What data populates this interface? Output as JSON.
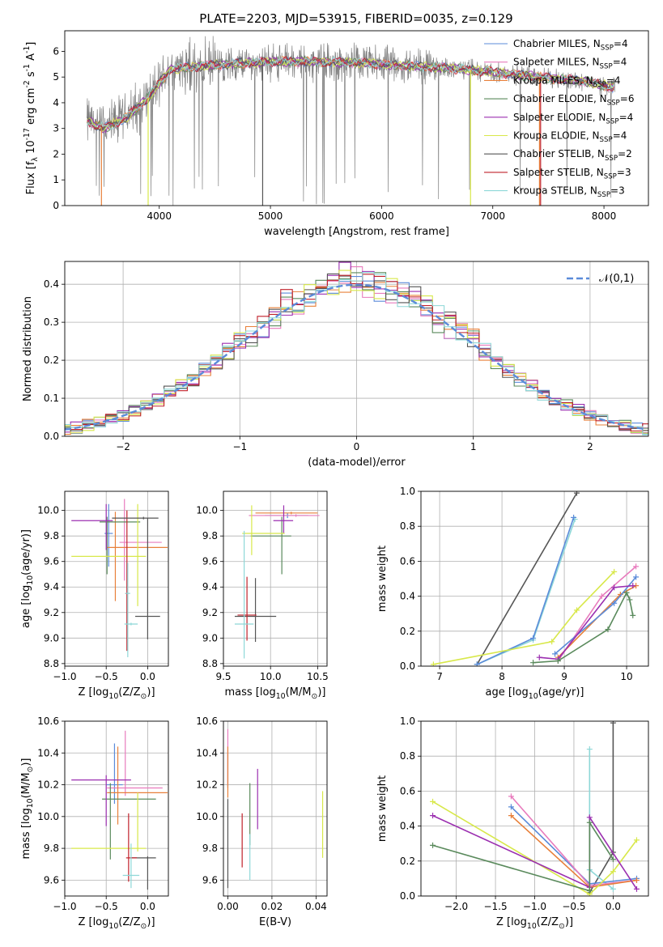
{
  "figure": {
    "title": "PLATE=2203, MJD=53915, FIBERID=0035, z=0.129"
  },
  "colors": {
    "Chabrier MILES": "#5b8bd9",
    "Salpeter MILES": "#e87bbd",
    "Kroupa MILES": "#e8803a",
    "Chabrier ELODIE": "#5a8a5c",
    "Salpeter ELODIE": "#9b2fb0",
    "Kroupa ELODIE": "#d8e84a",
    "Chabrier STELIB": "#555555",
    "Salpeter STELIB": "#c0202a",
    "Kroupa STELIB": "#8ed8d8",
    "normal_curve": "#5b8bd9"
  },
  "chart_data": [
    {
      "id": "spectrum",
      "type": "line",
      "xlabel": "wavelength [Angstrom, rest frame]",
      "ylabel": "Flux [f$_\\lambda$ 10$^{-17}$ erg cm$^{-2}$ s$^{-1}$ A$^{-1}$]",
      "xlim": [
        3150,
        8400
      ],
      "ylim": [
        0,
        6.8
      ],
      "xticks": [
        4000,
        5000,
        6000,
        7000,
        8000
      ],
      "yticks": [
        0,
        1,
        2,
        3,
        4,
        5,
        6
      ],
      "grid": false,
      "legend_position": "upper right",
      "series": [
        {
          "name": "Chabrier MILES, N$_{SSP}$=4"
        },
        {
          "name": "Salpeter MILES, N$_{SSP}$=4"
        },
        {
          "name": "Kroupa MILES, N$_{SSP}$=4"
        },
        {
          "name": "Chabrier ELODIE, N$_{SSP}$=6"
        },
        {
          "name": "Salpeter ELODIE, N$_{SSP}$=4"
        },
        {
          "name": "Kroupa ELODIE, N$_{SSP}$=4"
        },
        {
          "name": "Chabrier STELIB, N$_{SSP}$=2"
        },
        {
          "name": "Salpeter STELIB, N$_{SSP}$=3"
        },
        {
          "name": "Kroupa STELIB, N$_{SSP}$=3"
        }
      ],
      "continuum": {
        "x": [
          3350,
          3500,
          3700,
          3900,
          4100,
          4300,
          4600,
          5000,
          5400,
          5800,
          6200,
          6600,
          7000,
          7400,
          7800,
          8100
        ],
        "y": [
          3.3,
          3.0,
          3.4,
          4.2,
          5.3,
          5.4,
          5.5,
          5.6,
          5.6,
          5.55,
          5.45,
          5.35,
          5.2,
          5.0,
          4.85,
          4.6
        ]
      }
    },
    {
      "id": "residuals",
      "type": "line",
      "xlabel": "(data-model)/error",
      "ylabel": "Normed distribution",
      "xlim": [
        -2.5,
        2.5
      ],
      "ylim": [
        0,
        0.46
      ],
      "xticks": [
        -2,
        -1,
        0,
        1,
        2
      ],
      "yticks": [
        0.0,
        0.1,
        0.2,
        0.3,
        0.4
      ],
      "grid": true,
      "legend_position": "upper right",
      "curve_label": "$\\mathcal{N}(0,1)$"
    },
    {
      "id": "age_vs_Z",
      "type": "scatter",
      "xlabel": "Z [log$_{10}$(Z/Z$_\\odot$)]",
      "ylabel": "age  [log$_{10}$(age/yr)]",
      "xlim": [
        -1.0,
        0.25
      ],
      "ylim": [
        8.78,
        10.15
      ],
      "xticks": [
        -1.0,
        -0.5,
        0.0
      ],
      "yticks": [
        8.8,
        9.0,
        9.2,
        9.4,
        9.6,
        9.8,
        10.0
      ],
      "grid": true,
      "errorbars": [
        {
          "model": "Chabrier MILES",
          "x": -0.47,
          "y": 9.82,
          "xerr": [
            0.05,
            0.05
          ],
          "yerr": [
            0.26,
            0.23
          ]
        },
        {
          "model": "Salpeter MILES",
          "x": -0.28,
          "y": 9.75,
          "xerr": [
            0.06,
            0.45
          ],
          "yerr": [
            0.3,
            0.34
          ]
        },
        {
          "model": "Kroupa MILES",
          "x": -0.39,
          "y": 9.71,
          "xerr": [
            0.1,
            0.63
          ],
          "yerr": [
            0.42,
            0.28
          ]
        },
        {
          "model": "Chabrier ELODIE",
          "x": -0.49,
          "y": 9.91,
          "xerr": [
            0.09,
            0.4
          ],
          "yerr": [
            0.41,
            0.04
          ]
        },
        {
          "model": "Salpeter ELODIE",
          "x": -0.5,
          "y": 9.92,
          "xerr": [
            0.42,
            0.08
          ],
          "yerr": [
            0.23,
            0.13
          ]
        },
        {
          "model": "Kroupa ELODIE",
          "x": -0.12,
          "y": 9.64,
          "xerr": [
            0.8,
            0.1
          ],
          "yerr": [
            0.39,
            0.41
          ]
        },
        {
          "model": "Chabrier STELIB",
          "x": 0.0,
          "y": 9.17,
          "xerr": [
            0.15,
            0.15
          ],
          "yerr": [
            0.18,
            0.77
          ]
        },
        {
          "model": "Salpeter STELIB",
          "x": -0.25,
          "y": 9.35,
          "xerr": [
            0.02,
            0.02
          ],
          "yerr": [
            0.45,
            0.65
          ]
        },
        {
          "model": "Kroupa STELIB",
          "x": -0.24,
          "y": 9.35,
          "xerr": [
            0.03,
            0.03
          ],
          "yerr": [
            0.5,
            0.24
          ]
        },
        {
          "model": "Kroupa STELIB",
          "x": -0.2,
          "y": 9.11,
          "xerr": [
            0.08,
            0.08
          ],
          "yerr": [
            0.01,
            0.01
          ]
        },
        {
          "model": "Chabrier STELIB",
          "x": -0.05,
          "y": 9.94,
          "xerr": [
            0.38,
            0.18
          ],
          "yerr": [
            0.01,
            0.01
          ]
        }
      ]
    },
    {
      "id": "age_vs_mass",
      "type": "scatter",
      "xlabel": "mass [log$_{10}$(M/M$_\\odot$)]",
      "ylabel": "",
      "xlim": [
        9.5,
        10.6
      ],
      "ylim": [
        8.78,
        10.15
      ],
      "xticks": [
        9.5,
        10.0,
        10.5
      ],
      "yticks": [
        8.8,
        9.0,
        9.2,
        9.4,
        9.6,
        9.8,
        10.0
      ],
      "grid": true,
      "errorbars": [
        {
          "model": "Chabrier MILES",
          "x": 10.18,
          "y": 9.96,
          "xerr": [
            0.24,
            0.22
          ],
          "yerr": [
            0.02,
            0.02
          ]
        },
        {
          "model": "Salpeter MILES",
          "x": 10.27,
          "y": 9.96,
          "xerr": [
            0.5,
            0.25
          ],
          "yerr": [
            0.01,
            0.01
          ]
        },
        {
          "model": "Kroupa MILES",
          "x": 10.22,
          "y": 9.98,
          "xerr": [
            0.38,
            0.28
          ],
          "yerr": [
            0.01,
            0.01
          ]
        },
        {
          "model": "Chabrier ELODIE",
          "x": 10.12,
          "y": 9.8,
          "xerr": [
            0.33,
            0.1
          ],
          "yerr": [
            0.3,
            0.15
          ]
        },
        {
          "model": "Salpeter ELODIE",
          "x": 10.14,
          "y": 9.92,
          "xerr": [
            0.11,
            0.1
          ],
          "yerr": [
            0.1,
            0.12
          ]
        },
        {
          "model": "Kroupa ELODIE",
          "x": 9.8,
          "y": 9.82,
          "xerr": [
            0.1,
            0.35
          ],
          "yerr": [
            0.17,
            0.22
          ]
        },
        {
          "model": "Chabrier STELIB",
          "x": 9.84,
          "y": 9.17,
          "xerr": [
            0.22,
            0.22
          ],
          "yerr": [
            0.2,
            0.3
          ]
        },
        {
          "model": "Salpeter STELIB",
          "x": 9.75,
          "y": 9.18,
          "xerr": [
            0.1,
            0.1
          ],
          "yerr": [
            0.2,
            0.3
          ]
        },
        {
          "model": "Kroupa STELIB",
          "x": 9.72,
          "y": 9.11,
          "xerr": [
            0.1,
            0.1
          ],
          "yerr": [
            0.27,
            0.73
          ]
        }
      ]
    },
    {
      "id": "weight_vs_age",
      "type": "line",
      "xlabel": "age  [log$_{10}$(age/yr)]",
      "ylabel": "mass weight",
      "xlim": [
        6.7,
        10.35
      ],
      "ylim": [
        0,
        1.0
      ],
      "xticks": [
        7,
        8,
        9,
        10
      ],
      "yticks": [
        0.0,
        0.2,
        0.4,
        0.6,
        0.8,
        1.0
      ],
      "grid": true,
      "series": [
        {
          "model": "Chabrier STELIB",
          "x": [
            7.6,
            9.2
          ],
          "y": [
            0.01,
            0.99
          ]
        },
        {
          "model": "Kroupa STELIB",
          "x": [
            7.6,
            8.5,
            9.17
          ],
          "y": [
            0.01,
            0.15,
            0.84
          ]
        },
        {
          "model": "Chabrier MILES",
          "x": [
            7.6,
            8.5,
            9.15
          ],
          "y": [
            0.01,
            0.16,
            0.85
          ]
        },
        {
          "model": "Kroupa ELODIE",
          "x": [
            6.9,
            8.8,
            9.2,
            9.8
          ],
          "y": [
            0.01,
            0.14,
            0.32,
            0.54
          ]
        },
        {
          "model": "Salpeter MILES",
          "x": [
            8.9,
            9.6,
            10.15
          ],
          "y": [
            0.03,
            0.4,
            0.57
          ]
        },
        {
          "model": "Kroupa MILES",
          "x": [
            8.9,
            9.9,
            10.15
          ],
          "y": [
            0.05,
            0.41,
            0.46
          ]
        },
        {
          "model": "Chabrier MILES",
          "x": [
            8.85,
            9.8,
            10.15
          ],
          "y": [
            0.07,
            0.36,
            0.51
          ]
        },
        {
          "model": "Salpeter ELODIE",
          "x": [
            8.6,
            8.9,
            9.8,
            10.1
          ],
          "y": [
            0.05,
            0.04,
            0.45,
            0.46
          ]
        },
        {
          "model": "Chabrier ELODIE",
          "x": [
            8.5,
            8.9,
            9.7,
            10.0,
            10.05,
            10.1
          ],
          "y": [
            0.02,
            0.03,
            0.21,
            0.42,
            0.38,
            0.29
          ]
        }
      ]
    },
    {
      "id": "mass_vs_Z",
      "type": "scatter",
      "xlabel": "Z [log$_{10}$(Z/Z$_\\odot$)]",
      "ylabel": "mass [log$_{10}$(M/M$_\\odot$)]",
      "xlim": [
        -1.0,
        0.25
      ],
      "ylim": [
        9.5,
        10.6
      ],
      "xticks": [
        -1.0,
        -0.5,
        0.0
      ],
      "yticks": [
        9.6,
        9.8,
        10.0,
        10.2,
        10.4,
        10.6
      ],
      "grid": true,
      "errorbars": [
        {
          "model": "Chabrier MILES",
          "x": -0.4,
          "y": 10.2,
          "xerr": [
            0.1,
            0.1
          ],
          "yerr": [
            0.12,
            0.26
          ]
        },
        {
          "model": "Salpeter MILES",
          "x": -0.27,
          "y": 10.18,
          "xerr": [
            0.22,
            0.45
          ],
          "yerr": [
            0.05,
            0.36
          ]
        },
        {
          "model": "Kroupa MILES",
          "x": -0.36,
          "y": 10.15,
          "xerr": [
            0.13,
            0.6
          ],
          "yerr": [
            0.2,
            0.29
          ]
        },
        {
          "model": "Chabrier ELODIE",
          "x": -0.45,
          "y": 10.11,
          "xerr": [
            0.1,
            0.55
          ],
          "yerr": [
            0.38,
            0.1
          ]
        },
        {
          "model": "Salpeter ELODIE",
          "x": -0.5,
          "y": 10.23,
          "xerr": [
            0.42,
            0.3
          ],
          "yerr": [
            0.29,
            0.03
          ]
        },
        {
          "model": "Kroupa ELODIE",
          "x": -0.12,
          "y": 9.8,
          "xerr": [
            0.8,
            0.1
          ],
          "yerr": [
            0.02,
            0.35
          ]
        },
        {
          "model": "Chabrier STELIB",
          "x": 0.0,
          "y": 9.74,
          "xerr": [
            0.2,
            0.1
          ],
          "yerr": [
            0.2,
            0.01
          ]
        },
        {
          "model": "Salpeter STELIB",
          "x": -0.23,
          "y": 9.74,
          "xerr": [
            0.03,
            0.1
          ],
          "yerr": [
            0.15,
            0.28
          ]
        },
        {
          "model": "Kroupa STELIB",
          "x": -0.2,
          "y": 9.63,
          "xerr": [
            0.1,
            0.1
          ],
          "yerr": [
            0.08,
            0.2
          ]
        }
      ]
    },
    {
      "id": "mass_vs_ebv",
      "type": "scatter",
      "xlabel": "E(B-V)",
      "ylabel": "",
      "xlim": [
        -0.002,
        0.045
      ],
      "ylim": [
        9.5,
        10.6
      ],
      "xticks": [
        0.0,
        0.02,
        0.04
      ],
      "yticks": [
        9.6,
        9.8,
        10.0,
        10.2,
        10.4,
        10.6
      ],
      "grid": true,
      "errorbars": [
        {
          "model": "Chabrier MILES",
          "x": 0.0,
          "y": 10.3,
          "xerr": [
            0,
            0
          ],
          "yerr": [
            0.12,
            0.1
          ]
        },
        {
          "model": "Salpeter MILES",
          "x": 0.0,
          "y": 10.3,
          "xerr": [
            0,
            0
          ],
          "yerr": [
            0.1,
            0.25
          ]
        },
        {
          "model": "Kroupa MILES",
          "x": 0.0,
          "y": 10.3,
          "xerr": [
            0,
            0
          ],
          "yerr": [
            0.18,
            0.14
          ]
        },
        {
          "model": "Chabrier ELODIE",
          "x": 0.01,
          "y": 10.02,
          "xerr": [
            0,
            0
          ],
          "yerr": [
            0.2,
            0.19
          ]
        },
        {
          "model": "Salpeter ELODIE",
          "x": 0.0135,
          "y": 10.12,
          "xerr": [
            0,
            0
          ],
          "yerr": [
            0.2,
            0.18
          ]
        },
        {
          "model": "Kroupa ELODIE",
          "x": 0.043,
          "y": 9.95,
          "xerr": [
            0,
            0
          ],
          "yerr": [
            0.21,
            0.21
          ]
        },
        {
          "model": "Chabrier STELIB",
          "x": 0.0,
          "y": 9.85,
          "xerr": [
            0,
            0
          ],
          "yerr": [
            0.3,
            0.26
          ]
        },
        {
          "model": "Salpeter STELIB",
          "x": 0.0065,
          "y": 9.85,
          "xerr": [
            0,
            0
          ],
          "yerr": [
            0.17,
            0.17
          ]
        },
        {
          "model": "Kroupa STELIB",
          "x": 0.01,
          "y": 9.75,
          "xerr": [
            0,
            0
          ],
          "yerr": [
            0.15,
            0.14
          ]
        }
      ]
    },
    {
      "id": "weight_vs_Z",
      "type": "line",
      "xlabel": "Z [log$_{10}$(Z/Z$_\\odot$)]",
      "ylabel": "mass weight",
      "xlim": [
        -2.45,
        0.45
      ],
      "ylim": [
        0,
        1.0
      ],
      "xticks": [
        -2.0,
        -1.5,
        -1.0,
        -0.5,
        0.0
      ],
      "yticks": [
        0.0,
        0.2,
        0.4,
        0.6,
        0.8,
        1.0
      ],
      "grid": true,
      "series": [
        {
          "model": "Chabrier STELIB",
          "x": [
            -0.3,
            0.0,
            0.0
          ],
          "y": [
            0.02,
            0.25,
            0.99
          ]
        },
        {
          "model": "Kroupa STELIB",
          "x": [
            -0.3,
            -0.3,
            0.0
          ],
          "y": [
            0.84,
            0.15,
            0.04
          ]
        },
        {
          "model": "Chabrier MILES",
          "x": [
            -1.3,
            -0.3,
            0.3
          ],
          "y": [
            0.51,
            0.07,
            0.1
          ]
        },
        {
          "model": "Salpeter MILES",
          "x": [
            -1.3,
            -0.3,
            0.3
          ],
          "y": [
            0.57,
            0.06,
            0.09
          ]
        },
        {
          "model": "Kroupa MILES",
          "x": [
            -1.3,
            -0.3,
            0.3
          ],
          "y": [
            0.46,
            0.05,
            0.09
          ]
        },
        {
          "model": "Kroupa ELODIE",
          "x": [
            -2.3,
            -0.3,
            0.0,
            0.3
          ],
          "y": [
            0.54,
            0.01,
            0.14,
            0.32
          ]
        },
        {
          "model": "Salpeter ELODIE",
          "x": [
            -2.3,
            -0.3,
            -0.3,
            0.3
          ],
          "y": [
            0.46,
            0.05,
            0.45,
            0.04
          ]
        },
        {
          "model": "Chabrier ELODIE",
          "x": [
            -2.3,
            -0.3,
            -0.3,
            0.0
          ],
          "y": [
            0.29,
            0.03,
            0.42,
            0.21
          ]
        }
      ]
    }
  ]
}
